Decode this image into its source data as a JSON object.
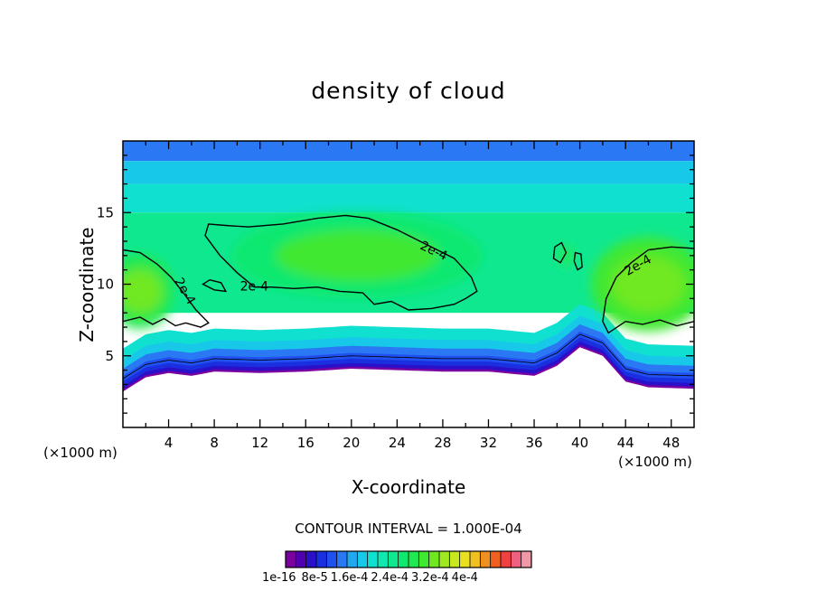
{
  "chart_data": {
    "type": "contour",
    "title": "density of cloud",
    "xlabel": "X-coordinate",
    "ylabel": "Z-coordinate",
    "x_unit_left": "(×1000 m)",
    "x_unit_right": "(×1000 m)",
    "xlim": [
      0,
      50
    ],
    "ylim": [
      0,
      20
    ],
    "x_ticks": [
      4,
      8,
      12,
      16,
      20,
      24,
      28,
      32,
      36,
      40,
      44,
      48
    ],
    "y_ticks": [
      5,
      10,
      15
    ],
    "contour_interval_text": "CONTOUR INTERVAL = 1.000E-04",
    "contour_labels": [
      {
        "text": "2e-4",
        "x": 11.5,
        "y": 9.8,
        "angle": 0
      },
      {
        "text": "2e-4",
        "x": 27.2,
        "y": 12.3,
        "angle": 25
      },
      {
        "text": "2e-4",
        "x": 5.4,
        "y": 9.5,
        "angle": 60
      },
      {
        "text": "2e-4",
        "x": 45.1,
        "y": 11.3,
        "angle": -30
      }
    ],
    "colorbar": {
      "colors": [
        "#7a00a0",
        "#5000b0",
        "#2a10c8",
        "#1a30e0",
        "#2050f0",
        "#2a78f4",
        "#20a8f0",
        "#18c8e8",
        "#10e0d0",
        "#10e8b0",
        "#10e890",
        "#10e870",
        "#20e850",
        "#40e830",
        "#70e820",
        "#a0e820",
        "#c8e820",
        "#e8e020",
        "#f0c020",
        "#f09020",
        "#f06020",
        "#f04040",
        "#f06080",
        "#f098a8"
      ],
      "tick_labels": [
        "1e-16",
        "8e-5",
        "1.6e-4",
        "2.4e-4",
        "3.2e-4",
        "4e-4"
      ]
    },
    "field": {
      "cloud_base_km": [
        [
          0,
          2.5
        ],
        [
          2,
          3.5
        ],
        [
          4,
          3.8
        ],
        [
          6,
          3.6
        ],
        [
          8,
          3.9
        ],
        [
          12,
          3.8
        ],
        [
          16,
          3.9
        ],
        [
          20,
          4.1
        ],
        [
          24,
          4.0
        ],
        [
          28,
          3.9
        ],
        [
          32,
          3.9
        ],
        [
          36,
          3.6
        ],
        [
          38,
          4.3
        ],
        [
          40,
          5.6
        ],
        [
          42,
          5.0
        ],
        [
          44,
          3.2
        ],
        [
          46,
          2.8
        ],
        [
          50,
          2.7
        ]
      ],
      "cloud_top_km": 20,
      "high_density_regions": [
        {
          "cx": 1.5,
          "cz": 9.5,
          "rx": 3.0,
          "rz": 2.6,
          "level": 2.4
        },
        {
          "cx": 20.5,
          "cz": 12.0,
          "rx": 11.0,
          "rz": 3.0,
          "level": 2.3
        },
        {
          "cx": 46.0,
          "cz": 10.0,
          "rx": 5.0,
          "rz": 3.3,
          "level": 2.5
        },
        {
          "cx": 38.8,
          "cz": 12.0,
          "rx": 1.0,
          "rz": 1.2,
          "level": 2.1
        }
      ]
    }
  }
}
